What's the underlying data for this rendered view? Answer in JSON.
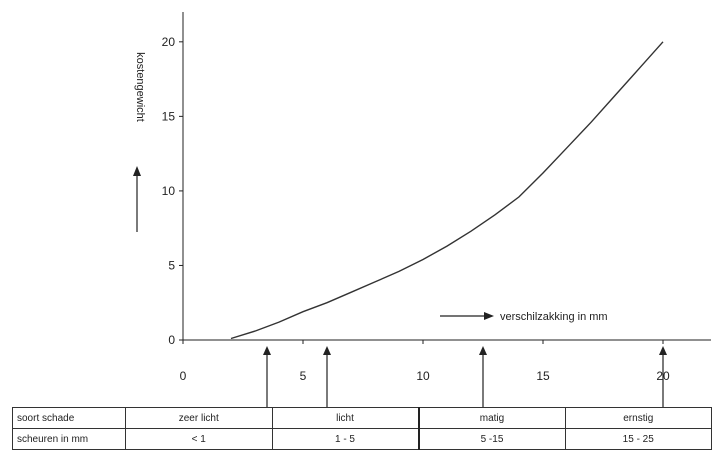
{
  "chart_data": {
    "type": "line",
    "title": "",
    "xlabel": "verschilzakking in mm",
    "ylabel": "kostengewicht",
    "xlim": [
      0,
      22
    ],
    "ylim": [
      0,
      22
    ],
    "x_ticks": [
      0,
      5,
      10,
      15,
      20
    ],
    "y_ticks": [
      0,
      5,
      10,
      15,
      20
    ],
    "x_tick_labels": [
      "0",
      "5",
      "10",
      "15",
      "20"
    ],
    "y_tick_labels": [
      "0",
      "5",
      "10",
      "15",
      "20"
    ],
    "grid": false,
    "legend": "none",
    "line_color": "#333333",
    "series": [
      {
        "x": [
          2,
          3,
          4,
          5,
          6,
          7,
          8,
          9,
          10,
          11,
          12,
          13,
          14,
          15,
          16,
          17,
          18,
          19,
          20
        ],
        "y": [
          0.1,
          0.6,
          1.2,
          1.9,
          2.5,
          3.2,
          3.9,
          4.6,
          5.4,
          6.3,
          7.3,
          8.4,
          9.6,
          11.2,
          12.9,
          14.6,
          16.4,
          18.2,
          20.0
        ]
      }
    ],
    "markers_x": [
      3.5,
      6,
      12.5,
      20
    ]
  },
  "table": {
    "rows": [
      {
        "label": "soort schade",
        "cells": [
          "zeer licht",
          "licht",
          "matig",
          "ernstig"
        ]
      },
      {
        "label": "scheuren in mm",
        "cells": [
          "< 1",
          "1 - 5",
          "5 -15",
          "15 - 25"
        ]
      }
    ]
  }
}
